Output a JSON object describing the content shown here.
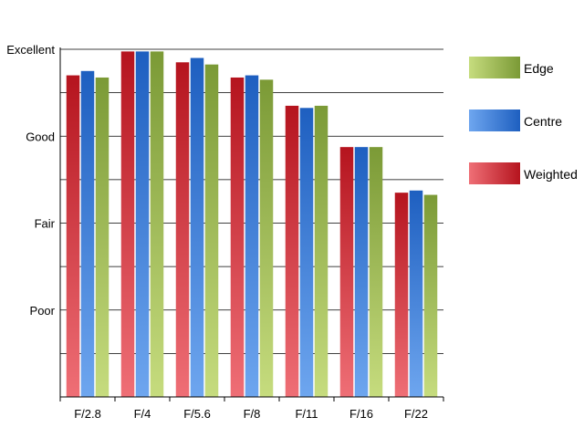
{
  "chart_data": {
    "type": "bar",
    "title": "",
    "xlabel": "",
    "ylabel": "",
    "categories": [
      "F/2.8",
      "F/4",
      "F/5.6",
      "F/8",
      "F/11",
      "F/16",
      "F/22"
    ],
    "ylim": [
      0,
      8
    ],
    "yticks": [
      {
        "value": 2,
        "label": "Poor"
      },
      {
        "value": 4,
        "label": "Fair"
      },
      {
        "value": 6,
        "label": "Good"
      },
      {
        "value": 8,
        "label": "Excellent"
      }
    ],
    "minor_gridlines_at": [
      1,
      3,
      5,
      7
    ],
    "grid": true,
    "legend_position": "right",
    "series": [
      {
        "name": "Weighted",
        "values": [
          7.4,
          7.95,
          7.7,
          7.35,
          6.7,
          5.75,
          4.7
        ]
      },
      {
        "name": "Centre",
        "values": [
          7.5,
          7.95,
          7.8,
          7.4,
          6.65,
          5.75,
          4.75
        ]
      },
      {
        "name": "Edge",
        "values": [
          7.35,
          7.95,
          7.65,
          7.3,
          6.7,
          5.75,
          4.65
        ]
      }
    ],
    "legend": [
      {
        "name": "Edge",
        "color_light": "#c6dc7e",
        "color_dark": "#7b9a36"
      },
      {
        "name": "Centre",
        "color_light": "#6ea6ef",
        "color_dark": "#1e5fc0"
      },
      {
        "name": "Weighted",
        "color_light": "#ef6f76",
        "color_dark": "#b5141e"
      }
    ],
    "colors": {
      "Weighted": {
        "light": "#ef6f76",
        "dark": "#b5141e"
      },
      "Centre": {
        "light": "#6ea6ef",
        "dark": "#1e5fc0"
      },
      "Edge": {
        "light": "#c6dc7e",
        "dark": "#7b9a36"
      }
    }
  }
}
